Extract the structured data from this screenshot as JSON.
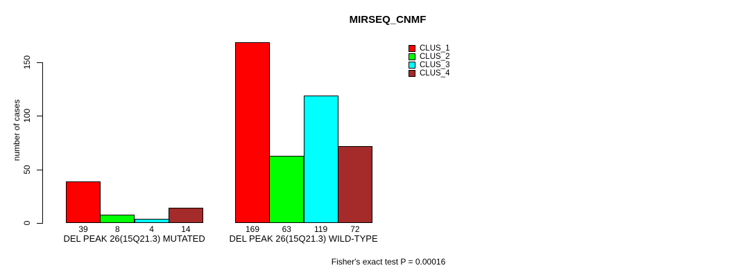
{
  "chart_data": {
    "type": "bar",
    "title": "MIRSEQ_CNMF",
    "ylabel": "number of cases",
    "xlabel": "",
    "yticks": [
      0,
      50,
      100,
      150
    ],
    "ylim": [
      0,
      169
    ],
    "grid": false,
    "legend_position": "top-right-inside",
    "series_names": [
      "CLUS_1",
      "CLUS_2",
      "CLUS_3",
      "CLUS_4"
    ],
    "series_colors": [
      "#ff0000",
      "#00ff00",
      "#00ffff",
      "#a52a2a"
    ],
    "groups": [
      {
        "label": "DEL PEAK 26(15Q21.3) MUTATED",
        "values": [
          39,
          8,
          4,
          14
        ]
      },
      {
        "label": "DEL PEAK 26(15Q21.3) WILD-TYPE",
        "values": [
          169,
          63,
          119,
          72
        ]
      }
    ],
    "annotation": "Fisher's exact test P = 0.00016"
  },
  "legend": [
    {
      "label": "CLUS_1",
      "color": "#ff0000"
    },
    {
      "label": "CLUS_2",
      "color": "#00ff00"
    },
    {
      "label": "CLUS_3",
      "color": "#00ffff"
    },
    {
      "label": "CLUS_4",
      "color": "#a52a2a"
    }
  ],
  "colors": {
    "background": "#ffffff",
    "axis": "#000000",
    "text": "#000000",
    "bar_border": "#000000"
  }
}
